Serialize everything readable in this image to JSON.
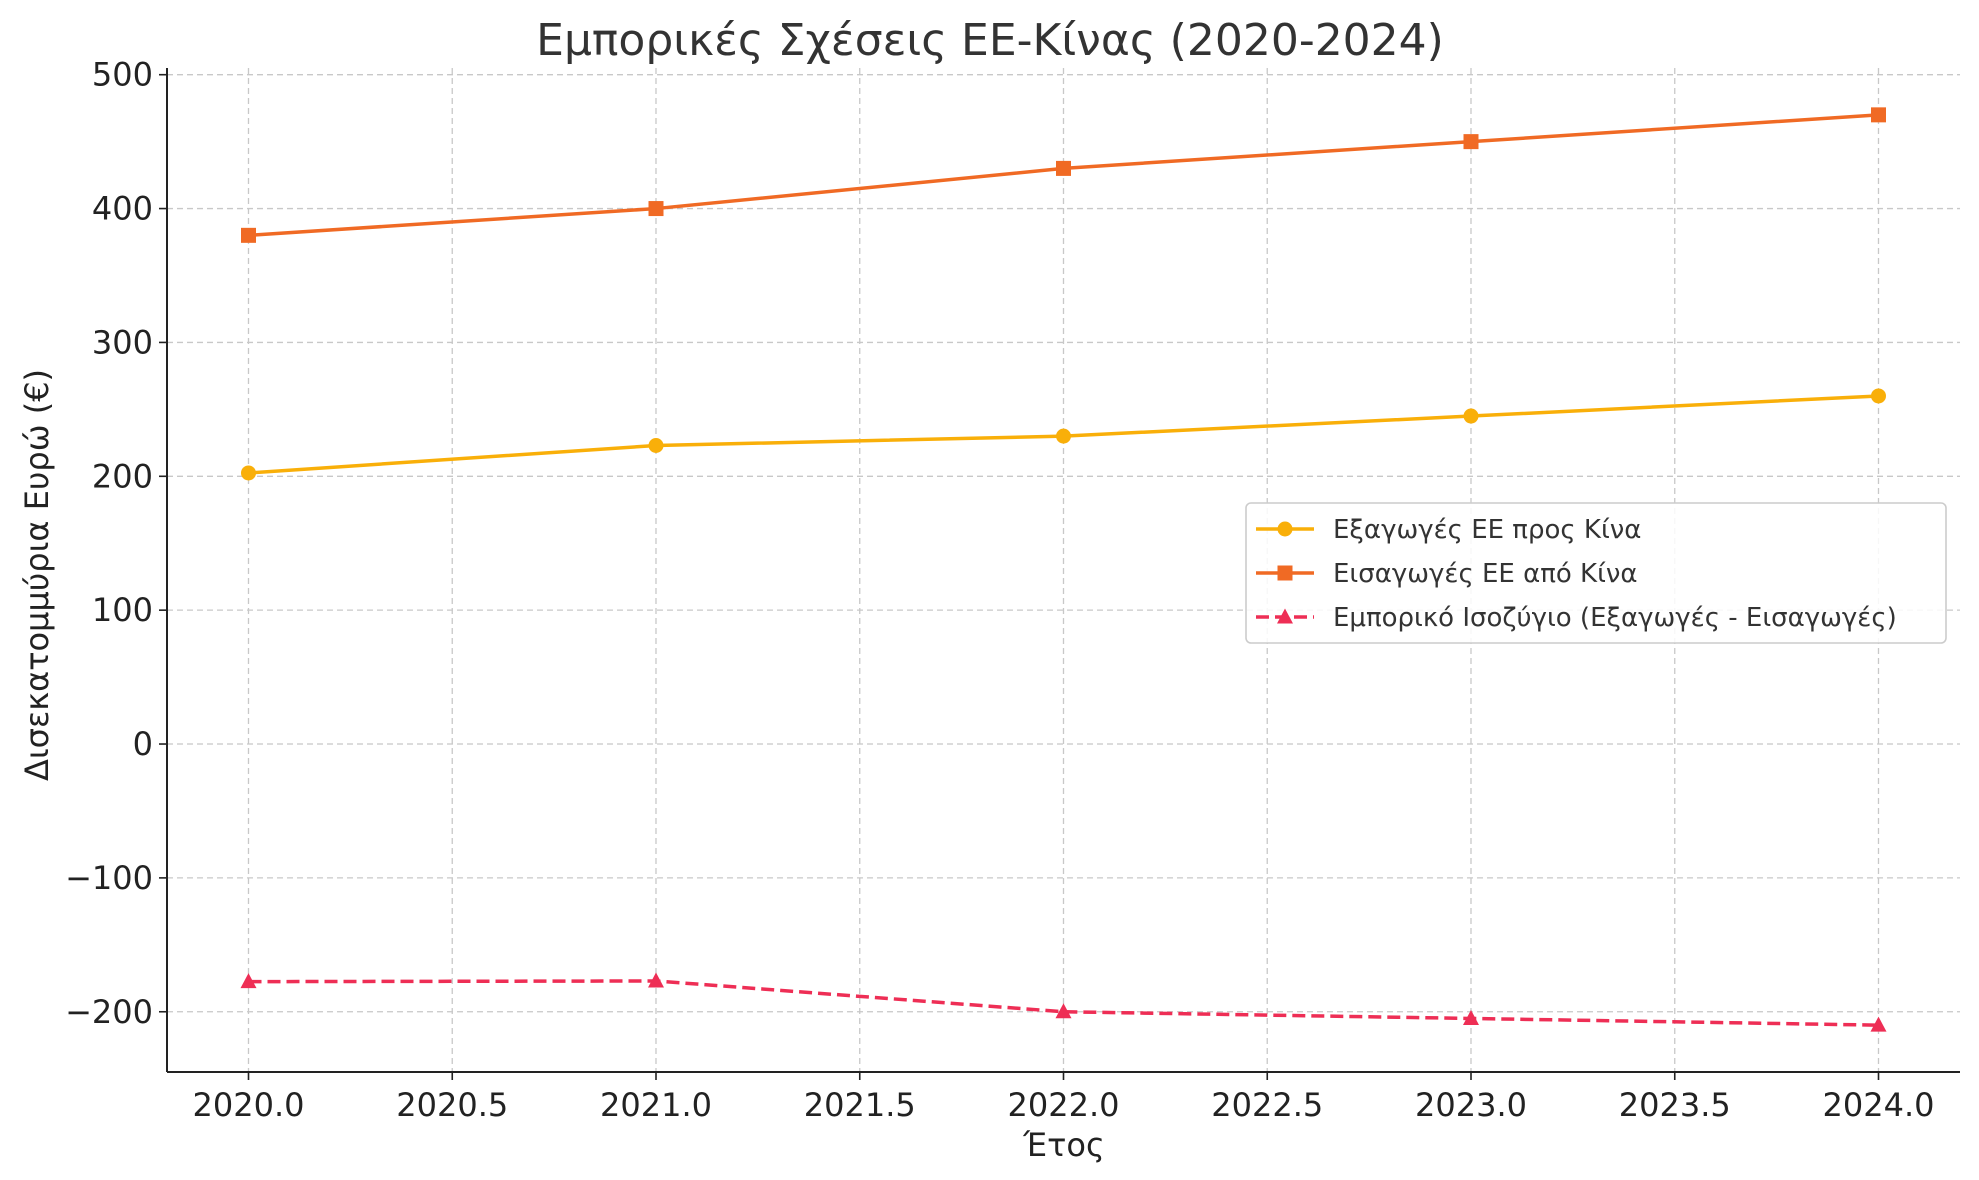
{
  "chart_data": {
    "type": "line",
    "title": "Εμπορικές Σχέσεις ΕΕ-Κίνας (2020-2024)",
    "xlabel": "Έτος",
    "ylabel": "Δισεκατομμύρια Ευρώ (€)",
    "x": [
      2020,
      2021,
      2022,
      2023,
      2024
    ],
    "xlim": [
      2019.8,
      2024.2
    ],
    "ylim": [
      -245,
      505
    ],
    "xticks": [
      2020.0,
      2020.5,
      2021.0,
      2021.5,
      2022.0,
      2022.5,
      2023.0,
      2023.5,
      2024.0
    ],
    "xtick_labels": [
      "2020.0",
      "2020.5",
      "2021.0",
      "2021.5",
      "2022.0",
      "2022.5",
      "2023.0",
      "2023.5",
      "2024.0"
    ],
    "yticks": [
      -200,
      -100,
      0,
      100,
      200,
      300,
      400,
      500
    ],
    "ytick_labels": [
      "−200",
      "−100",
      "0",
      "100",
      "200",
      "300",
      "400",
      "500"
    ],
    "grid": true,
    "legend_position": "center-right",
    "series": [
      {
        "name": "Εξαγωγές ΕΕ προς Κίνα",
        "values": [
          202.5,
          223,
          230,
          245,
          260
        ],
        "color": "#F9AF09",
        "marker": "circle",
        "dash": "solid"
      },
      {
        "name": "Εισαγωγές ΕΕ από Κίνα",
        "values": [
          380,
          400,
          430,
          450,
          470
        ],
        "color": "#F06A24",
        "marker": "square",
        "dash": "solid"
      },
      {
        "name": "Εμπορικό Ισοζύγιο (Εξαγωγές - Εισαγωγές)",
        "values": [
          -177.5,
          -177,
          -200,
          -205,
          -210
        ],
        "color": "#EE2E55",
        "marker": "triangle",
        "dash": "dashed"
      }
    ]
  }
}
